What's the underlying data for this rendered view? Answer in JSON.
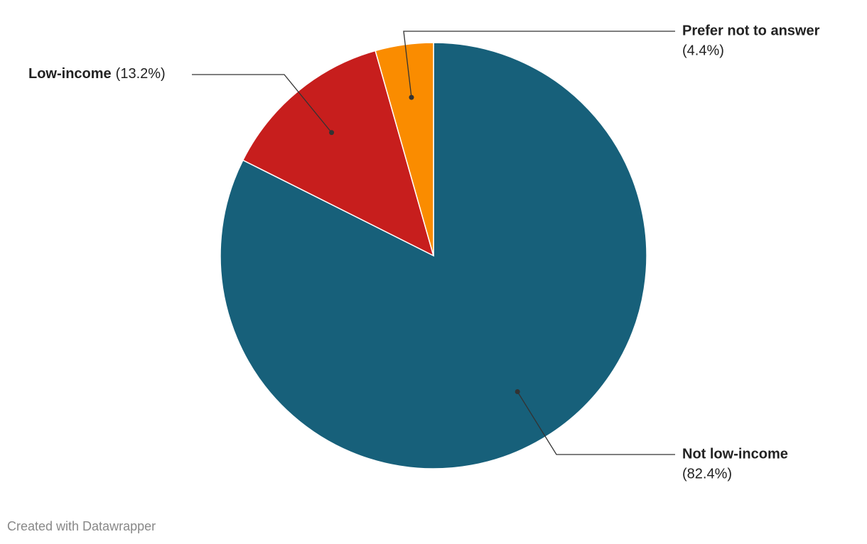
{
  "chart_data": {
    "type": "pie",
    "categories": [
      "Not low-income",
      "Low-income",
      "Prefer not to answer"
    ],
    "values": [
      82.4,
      13.2,
      4.4
    ],
    "value_labels": [
      "(82.4%)",
      "(13.2%)",
      "(4.4%)"
    ],
    "colors": [
      "#17607a",
      "#c71e1d",
      "#fa8c00"
    ],
    "credit": "Created with Datawrapper"
  }
}
